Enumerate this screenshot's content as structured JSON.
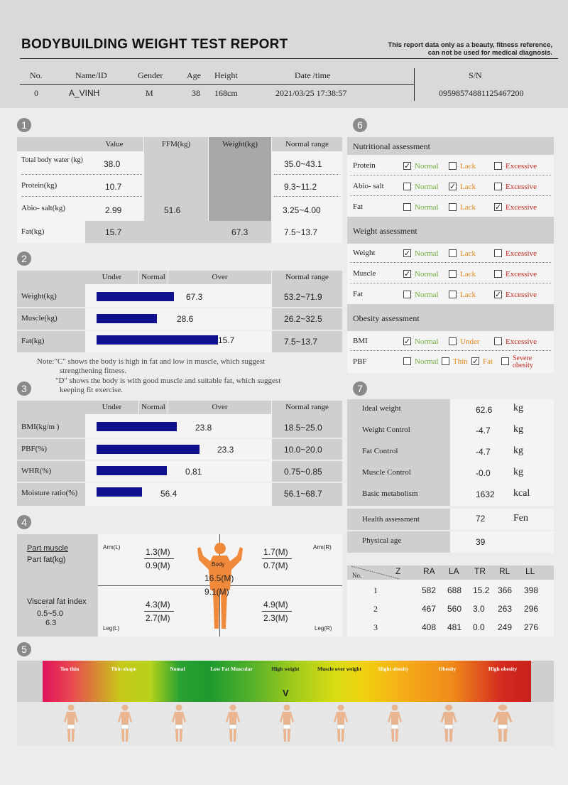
{
  "header": {
    "title": "BODYBUILDING WEIGHT TEST REPORT",
    "disclaimer_line1": "This report data only as a beauty, fitness reference,",
    "disclaimer_line2": "can not be used for medical diagnosis.",
    "labels": {
      "no": "No.",
      "name": "Name/ID",
      "gender": "Gender",
      "age": "Age",
      "height": "Height",
      "date": "Date /time",
      "sn": "S/N"
    },
    "values": {
      "no": "0",
      "name": "A_VINH",
      "gender": "M",
      "age": "38",
      "height": "168cm",
      "date": "2021/03/25 17:38:57",
      "sn": "0959857488112546720​0"
    }
  },
  "section_numbers": [
    "1",
    "2",
    "3",
    "4",
    "5",
    "6",
    "7"
  ],
  "sec1": {
    "cols": {
      "value": "Value",
      "ffm": "FFM(kg)",
      "weight": "Weight(kg)",
      "range": "Normal range"
    },
    "rows": [
      {
        "label": "Total body water (kg)",
        "value": "38.0",
        "range": "35.0~43.1"
      },
      {
        "label": "Protein(kg)",
        "value": "10.7",
        "range": "9.3~11.2"
      },
      {
        "label": "Abio- salt(kg)",
        "value": "2.99",
        "range": "3.25~4.00"
      },
      {
        "label": "Fat(kg)",
        "value": "15.7",
        "range": "7.5~13.7"
      }
    ],
    "ffm": "51.6",
    "weight": "67.3"
  },
  "sec2": {
    "cols": {
      "under": "Under",
      "normal": "Normal",
      "over": "Over",
      "range": "Normal range"
    },
    "rows": [
      {
        "label": "Weight(kg)",
        "value": "67.3",
        "range": "53.2~71.9",
        "fill": 0.36
      },
      {
        "label": "Muscle(kg)",
        "value": "28.6",
        "range": "26.2~32.5",
        "fill": 0.28
      },
      {
        "label": "Fat(kg)",
        "value": "15.7",
        "range": "7.5~13.7",
        "fill": 0.57
      }
    ],
    "note1": "Note:\"C\" shows the body is high in fat and low in muscle,  which suggest",
    "note2": "strengthening fitness.",
    "note3": "\"D\" shows the body is with good muscle and suitable fat,  which suggest",
    "note4": "keeping fit exercise."
  },
  "sec3": {
    "cols": {
      "under": "Under",
      "normal": "Normal",
      "over": "Over",
      "range": "Normal range"
    },
    "rows": [
      {
        "label": "BMI(kg/m )",
        "value": "23.8",
        "range": "18.5~25.0",
        "fill": 0.37
      },
      {
        "label": "PBF(%)",
        "value": "23.3",
        "range": "10.0~20.0",
        "fill": 0.48
      },
      {
        "label": "WHR(%)",
        "value": "0.81",
        "range": "0.75~0.85",
        "fill": 0.33
      },
      {
        "label": "Moisture ratio(%)",
        "value": "56.4",
        "range": "56.1~68.7",
        "fill": 0.21
      }
    ]
  },
  "sec4": {
    "part_muscle": "Part muscle",
    "part_fat": "Part fat(kg)",
    "arm_l": "Arm(L)",
    "arm_r": "Arm(R)",
    "leg_l": "Leg(L)",
    "leg_r": "Leg(R)",
    "body": "Body",
    "arm_l_muscle": "1.3(M)",
    "arm_l_fat": "0.9(M)",
    "arm_r_muscle": "1.7(M)",
    "arm_r_fat": "0.7(M)",
    "body_muscle": "16.5(M)",
    "body_fat": "9.1(M)",
    "leg_l_muscle": "4.3(M)",
    "leg_l_fat": "2.7(M)",
    "leg_r_muscle": "4.9(M)",
    "leg_r_fat": "2.3(M)",
    "visceral_label": "Visceral fat index",
    "visceral_range": "0.5~5.0",
    "visceral_value": "6.3"
  },
  "sec5": {
    "labels": [
      "Too thin",
      "Thin shape",
      "Nomal",
      "Low Fat Muscular",
      "High weight",
      "Muscle over weight",
      "Slight obesity",
      "Obesity",
      "High obesity"
    ],
    "marker": "V",
    "colors": [
      "#e0125a",
      "#b8cc1a",
      "#2aa232",
      "#4eb02c",
      "#a4cc1a",
      "#f0d010",
      "#f5a818",
      "#e8701a",
      "#d42a20"
    ]
  },
  "sec6": {
    "nutritional": "Nutritional assessment",
    "weight_assess": "Weight assessment",
    "obesity_assess": "Obesity assessment",
    "opts": {
      "normal": "Normal",
      "lack": "Lack",
      "excessive": "Excessive",
      "under": "Under",
      "thin": "Thin",
      "fat": "Fat",
      "severe1": "Severe",
      "severe2": "obesity"
    },
    "nutr_rows": [
      {
        "label": "Protein",
        "check": "normal"
      },
      {
        "label": "Abio- salt",
        "check": "lack"
      },
      {
        "label": "Fat",
        "check": "excessive"
      }
    ],
    "weight_rows": [
      {
        "label": "Weight",
        "check": "normal"
      },
      {
        "label": "Muscle",
        "check": "normal"
      },
      {
        "label": "Fat",
        "check": "excessive"
      }
    ],
    "bmi_label": "BMI",
    "pbf_label": "PBF"
  },
  "sec7": {
    "rows": [
      {
        "label": "Ideal weight",
        "value": "62.6",
        "unit": "kg"
      },
      {
        "label": "Weight Control",
        "value": "-4.7",
        "unit": "kg"
      },
      {
        "label": "Fat Control",
        "value": "-4.7",
        "unit": "kg"
      },
      {
        "label": "Muscle Control",
        "value": "-0.0",
        "unit": "kg"
      },
      {
        "label": "Basic metabolism",
        "value": "1632",
        "unit": "kcal"
      }
    ],
    "health_label": "Health assessment",
    "health_value": "72",
    "health_unit": "Fen",
    "age_label": "Physical age",
    "age_value": "39",
    "imp_no": "No.",
    "imp_z": "Z",
    "imp_cols": [
      "RA",
      "LA",
      "TR",
      "RL",
      "LL"
    ],
    "imp_rows": [
      {
        "no": "1",
        "vals": [
          "582",
          "688",
          "15.2",
          "366",
          "398"
        ]
      },
      {
        "no": "2",
        "vals": [
          "467",
          "560",
          "3.0",
          "263",
          "296"
        ]
      },
      {
        "no": "3",
        "vals": [
          "408",
          "481",
          "0.0",
          "249",
          "276"
        ]
      }
    ]
  }
}
